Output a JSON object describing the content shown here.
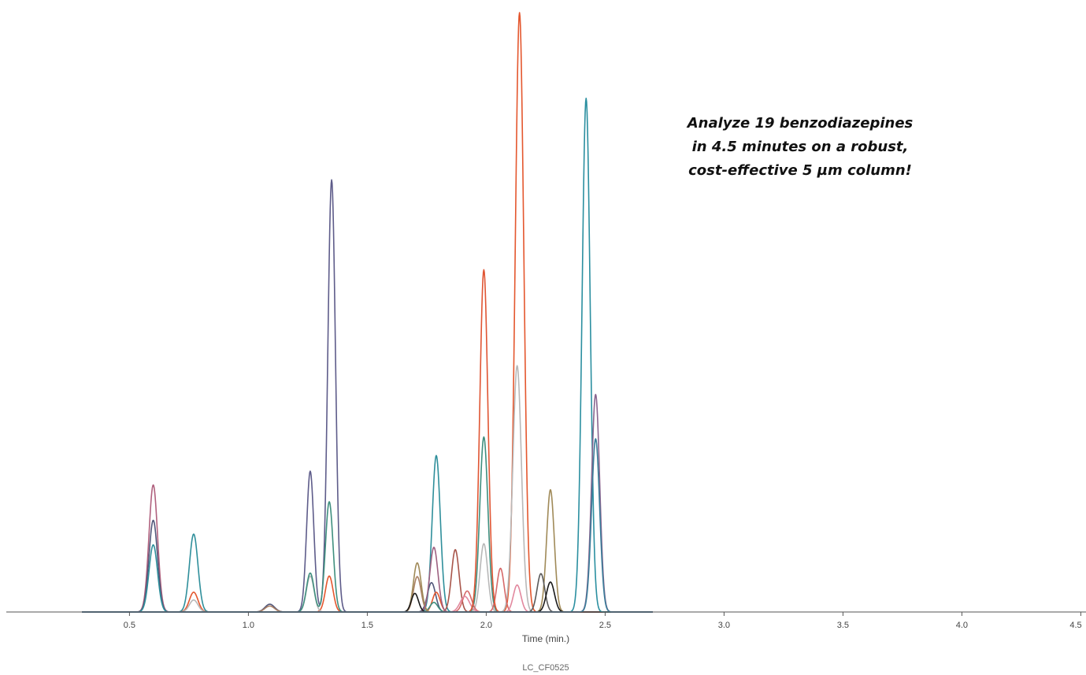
{
  "chart_data": {
    "type": "line",
    "title": "",
    "xlabel": "Time (min.)",
    "ylabel": "",
    "xlim": [
      0,
      4.5
    ],
    "ylim": [
      0,
      1.0
    ],
    "grid": false,
    "x_ticks": [
      "0.5",
      "1.0",
      "1.5",
      "2.0",
      "2.5",
      "3.0",
      "3.5",
      "4.0",
      "4.5"
    ],
    "annotation": [
      "Analyze 19 benzodiazepines",
      "in 4.5 minutes on a robust,",
      "cost-effective 5 µm column!"
    ],
    "figure_code": "LC_CF0525",
    "series": [
      {
        "color": "#b0617e",
        "peaks": [
          [
            0.6,
            0.212,
            0.018
          ]
        ]
      },
      {
        "color": "#52577a",
        "peaks": [
          [
            0.6,
            0.153,
            0.018
          ],
          [
            1.09,
            0.013,
            0.02
          ],
          [
            1.77,
            0.049,
            0.017
          ]
        ]
      },
      {
        "color": "#2f8f9b",
        "peaks": [
          [
            0.6,
            0.112,
            0.018
          ],
          [
            0.77,
            0.13,
            0.018
          ],
          [
            1.79,
            0.261,
            0.017
          ]
        ]
      },
      {
        "color": "#e4572e",
        "peaks": [
          [
            0.77,
            0.033,
            0.018
          ],
          [
            1.34,
            0.06,
            0.016
          ],
          [
            1.79,
            0.033,
            0.016
          ],
          [
            2.14,
            1.0,
            0.018
          ]
        ]
      },
      {
        "color": "#b8b8b8",
        "peaks": [
          [
            0.77,
            0.02,
            0.018
          ],
          [
            1.26,
            0.06,
            0.016
          ],
          [
            1.99,
            0.114,
            0.016
          ],
          [
            2.13,
            0.411,
            0.018
          ]
        ]
      },
      {
        "color": "#5e5c8a",
        "peaks": [
          [
            1.26,
            0.235,
            0.015
          ],
          [
            1.35,
            0.721,
            0.016
          ]
        ]
      },
      {
        "color": "#3f8f7f",
        "peaks": [
          [
            1.26,
            0.065,
            0.016
          ],
          [
            1.34,
            0.184,
            0.016
          ],
          [
            1.78,
            0.016,
            0.016
          ],
          [
            1.99,
            0.292,
            0.017
          ]
        ]
      },
      {
        "color": "#a97f63",
        "peaks": [
          [
            1.09,
            0.01,
            0.02
          ],
          [
            1.71,
            0.059,
            0.016
          ]
        ]
      },
      {
        "color": "#a08a58",
        "peaks": [
          [
            1.71,
            0.082,
            0.016
          ],
          [
            2.27,
            0.204,
            0.016
          ]
        ]
      },
      {
        "color": "#a8554a",
        "peaks": [
          [
            1.87,
            0.104,
            0.016
          ]
        ]
      },
      {
        "color": "#9e6080",
        "peaks": [
          [
            1.78,
            0.108,
            0.017
          ]
        ]
      },
      {
        "color": "#d66a6a",
        "peaks": [
          [
            1.92,
            0.035,
            0.018
          ],
          [
            2.06,
            0.073,
            0.015
          ]
        ]
      },
      {
        "color": "#e2889e",
        "peaks": [
          [
            1.91,
            0.026,
            0.02
          ],
          [
            2.13,
            0.045,
            0.016
          ]
        ]
      },
      {
        "color": "#e05533",
        "peaks": [
          [
            1.99,
            0.571,
            0.017
          ]
        ]
      },
      {
        "color": "#5a5a5a",
        "peaks": [
          [
            2.23,
            0.064,
            0.016
          ]
        ]
      },
      {
        "color": "#1a1a1a",
        "peaks": [
          [
            1.7,
            0.031,
            0.015
          ],
          [
            2.27,
            0.05,
            0.017
          ]
        ]
      },
      {
        "color": "#2b8fa0",
        "peaks": [
          [
            2.42,
            0.857,
            0.017
          ]
        ]
      },
      {
        "color": "#8a6690",
        "peaks": [
          [
            2.46,
            0.363,
            0.017
          ]
        ]
      },
      {
        "color": "#3a7d9a",
        "peaks": [
          [
            2.46,
            0.289,
            0.017
          ]
        ]
      }
    ]
  }
}
